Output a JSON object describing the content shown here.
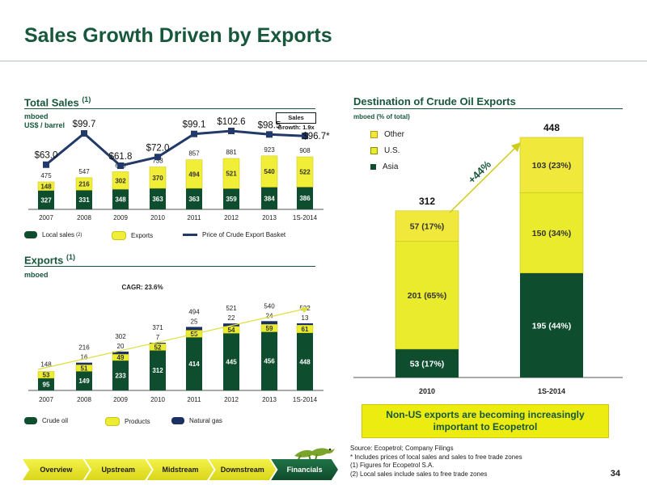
{
  "page": {
    "title": "Sales Growth Driven by Exports",
    "page_number": "34"
  },
  "colors": {
    "asia": "#0e4d2e",
    "crude": "#0e4d2e",
    "local": "#0e4d2e",
    "exports": "#f0ee36",
    "products": "#ecec31",
    "us": "#e9eb2c",
    "other": "#f0e83a",
    "natgas": "#1b2f63",
    "line": "#223a6a",
    "brand": "#17573b"
  },
  "total_sales": {
    "title": "Total Sales",
    "title_sup": "(1)",
    "unit1": "mboed",
    "unit2": "US$ / barrel",
    "growth_label": "Sales Growth: 1.9x",
    "legend": {
      "local": "Local sales",
      "local_sup": "(2)",
      "exports": "Exports",
      "price": "Price of Crude Export Basket"
    }
  },
  "exports_section": {
    "title": "Exports",
    "title_sup": "(1)",
    "unit": "mboed",
    "cagr": "CAGR: 23.6%",
    "legend": {
      "crude": "Crude oil",
      "products": "Products",
      "natgas": "Natural gas"
    }
  },
  "destination": {
    "title": "Destination of Crude Oil Exports",
    "unit": "mboed (% of total)",
    "legend": {
      "other": "Other",
      "us": "U.S.",
      "asia": "Asia"
    },
    "growth": "+44%",
    "callout": "Non-US exports are becoming increasingly important to Ecopetrol"
  },
  "notes": [
    "Source: Ecopetrol; Company Filings",
    "* Includes prices of local sales and sales to free trade zones",
    "(1) Figures for Ecopetrol S.A.",
    "(2) Local sales include sales to free trade zones"
  ],
  "nav": {
    "tabs": [
      "Overview",
      "Upstream",
      "Midstream",
      "Downstream",
      "Financials"
    ],
    "active": "Financials"
  },
  "chart_data": [
    {
      "type": "bar",
      "title": "Total Sales",
      "categories": [
        "2007",
        "2008",
        "2009",
        "2010",
        "2011",
        "2012",
        "2013",
        "1S-2014"
      ],
      "series": [
        {
          "name": "Local sales",
          "values": [
            327,
            331,
            348,
            363,
            363,
            359,
            384,
            386
          ]
        },
        {
          "name": "Exports",
          "values": [
            148,
            216,
            302,
            370,
            494,
            521,
            540,
            522
          ]
        }
      ],
      "totals": [
        "475",
        "547",
        "650",
        "733",
        "857",
        "881",
        "923",
        "908"
      ],
      "line_series": {
        "name": "Price of Crude Export Basket",
        "values": [
          63.0,
          99.7,
          61.8,
          72.0,
          99.1,
          102.6,
          98.5,
          96.7
        ],
        "labels": [
          "$63.0",
          "$99.7",
          "$61.8",
          "$72.0",
          "$99.1",
          "$102.6",
          "$98.5",
          "$96.7*"
        ]
      },
      "ylabel": "mboed"
    },
    {
      "type": "bar",
      "title": "Exports",
      "categories": [
        "2007",
        "2008",
        "2009",
        "2010",
        "2011",
        "2012",
        "2013",
        "1S-2014"
      ],
      "series": [
        {
          "name": "Crude oil",
          "values": [
            95,
            149,
            233,
            312,
            414,
            445,
            456,
            448
          ]
        },
        {
          "name": "Products",
          "values": [
            53,
            51,
            49,
            52,
            55,
            54,
            59,
            61
          ]
        },
        {
          "name": "Natural gas",
          "values": [
            0,
            16,
            20,
            7,
            25,
            22,
            24,
            13
          ]
        }
      ],
      "natgas_labels": [
        "",
        "16",
        "20",
        "7",
        "25",
        "22",
        "24",
        "13"
      ],
      "totals": [
        "148",
        "216",
        "302",
        "371",
        "494",
        "521",
        "540",
        "522"
      ],
      "annotation": "CAGR: 23.6%",
      "ylabel": "mboed"
    },
    {
      "type": "bar",
      "title": "Destination of Crude Oil Exports",
      "categories": [
        "2010",
        "1S-2014"
      ],
      "series": [
        {
          "name": "Asia",
          "values": [
            53,
            195
          ],
          "labels": [
            "53 (17%)",
            "195 (44%)"
          ]
        },
        {
          "name": "U.S.",
          "values": [
            201,
            150
          ],
          "labels": [
            "201 (65%)",
            "150 (34%)"
          ]
        },
        {
          "name": "Other",
          "values": [
            57,
            103
          ],
          "labels": [
            "57 (17%)",
            "103 (23%)"
          ]
        }
      ],
      "totals": [
        "312",
        "448"
      ],
      "annotation": "+44%",
      "ylabel": "mboed (% of total)"
    }
  ]
}
